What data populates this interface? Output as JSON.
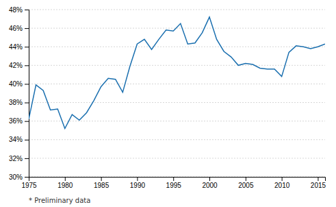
{
  "chart_data": {
    "type": "line",
    "x": [
      1975,
      1976,
      1977,
      1978,
      1979,
      1980,
      1981,
      1982,
      1983,
      1984,
      1985,
      1986,
      1987,
      1988,
      1989,
      1990,
      1991,
      1992,
      1993,
      1994,
      1995,
      1996,
      1997,
      1998,
      1999,
      2000,
      2001,
      2002,
      2003,
      2004,
      2005,
      2006,
      2007,
      2008,
      2009,
      2010,
      2011,
      2012,
      2013,
      2014,
      2015,
      2016
    ],
    "values": [
      36.2,
      39.9,
      39.3,
      37.2,
      37.3,
      35.2,
      36.7,
      36.1,
      36.9,
      38.2,
      39.7,
      40.6,
      40.5,
      39.1,
      41.9,
      44.3,
      44.8,
      43.7,
      44.8,
      45.8,
      45.7,
      46.5,
      44.3,
      44.4,
      45.5,
      47.2,
      44.8,
      43.5,
      42.9,
      42.0,
      42.2,
      42.1,
      41.7,
      41.6,
      41.6,
      40.8,
      43.4,
      44.1,
      44.0,
      43.8,
      44.0,
      44.3
    ],
    "color": "#1a6faf",
    "xlim": [
      1975,
      2016
    ],
    "xticks": [
      1975,
      1980,
      1985,
      1990,
      1995,
      2000,
      2005,
      2010,
      2015
    ],
    "ylim": [
      30,
      48
    ],
    "yticks": [
      {
        "value": 30,
        "label": "30%"
      },
      {
        "value": 32,
        "label": "32%"
      },
      {
        "value": 34,
        "label": "34%"
      },
      {
        "value": 36,
        "label": "36%"
      },
      {
        "value": 38,
        "label": "38%"
      },
      {
        "value": 40,
        "label": "40%"
      },
      {
        "value": 42,
        "label": "42%"
      },
      {
        "value": 44,
        "label": "44%"
      },
      {
        "value": 46,
        "label": "46%"
      },
      {
        "value": 48,
        "label": "48%"
      }
    ],
    "grid": true,
    "annotations": [
      "* Preliminary data"
    ]
  }
}
